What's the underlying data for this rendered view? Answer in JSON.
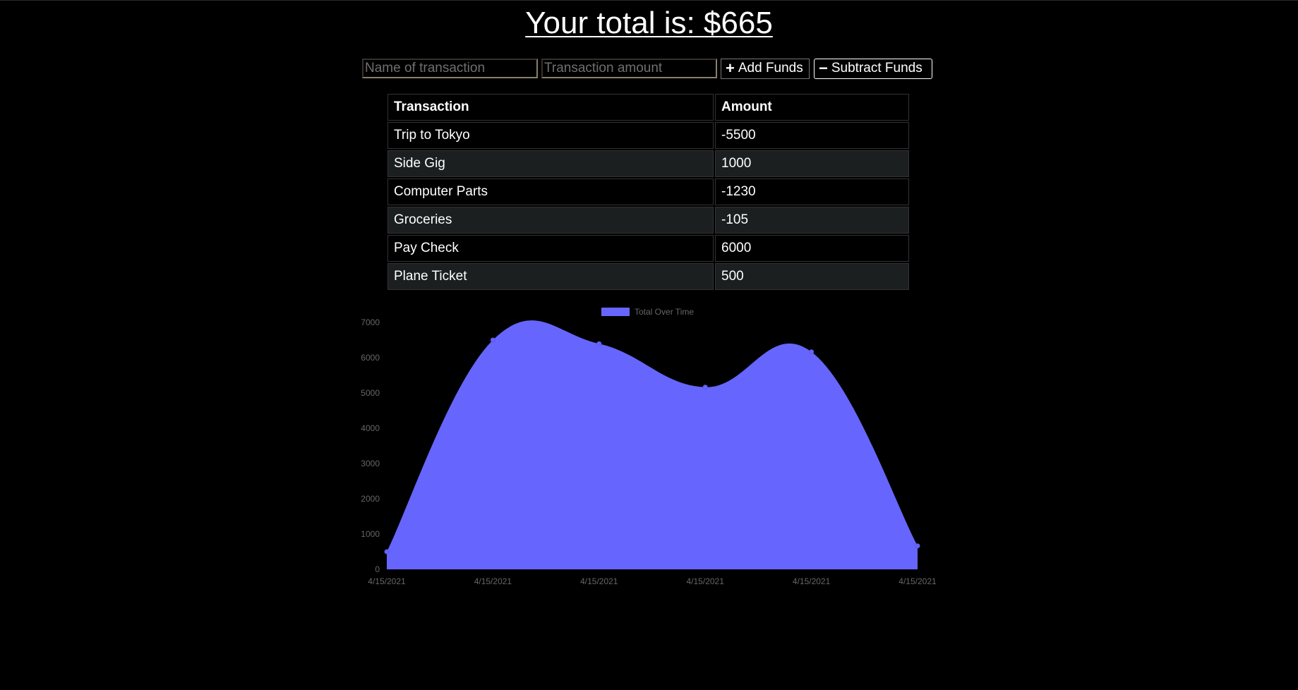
{
  "header": {
    "total_text": "Your total is: $665"
  },
  "form": {
    "name_placeholder": "Name of transaction",
    "amount_placeholder": "Transaction amount",
    "add_label": "Add Funds",
    "subtract_label": "Subtract Funds",
    "add_icon": "plus-icon",
    "subtract_icon": "minus-icon"
  },
  "table": {
    "headers": [
      "Transaction",
      "Amount"
    ],
    "rows": [
      {
        "name": "Trip to Tokyo",
        "amount": "-5500"
      },
      {
        "name": "Side Gig",
        "amount": "1000"
      },
      {
        "name": "Computer Parts",
        "amount": "-1230"
      },
      {
        "name": "Groceries",
        "amount": "-105"
      },
      {
        "name": "Pay Check",
        "amount": "6000"
      },
      {
        "name": "Plane Ticket",
        "amount": "500"
      }
    ]
  },
  "colors": {
    "chart_fill": "#6666ff",
    "row_alt": "#1b1f20",
    "axis_text": "#666666"
  },
  "chart_data": {
    "type": "area",
    "title": "",
    "legend": [
      "Total Over Time"
    ],
    "legend_position": "top",
    "categories": [
      "4/15/2021",
      "4/15/2021",
      "4/15/2021",
      "4/15/2021",
      "4/15/2021",
      "4/15/2021"
    ],
    "series": [
      {
        "name": "Total Over Time",
        "values": [
          500,
          6500,
          6395,
          5165,
          6165,
          665
        ]
      }
    ],
    "ylim": [
      0,
      7000
    ],
    "yticks": [
      0,
      1000,
      2000,
      3000,
      4000,
      5000,
      6000,
      7000
    ],
    "grid": false
  }
}
